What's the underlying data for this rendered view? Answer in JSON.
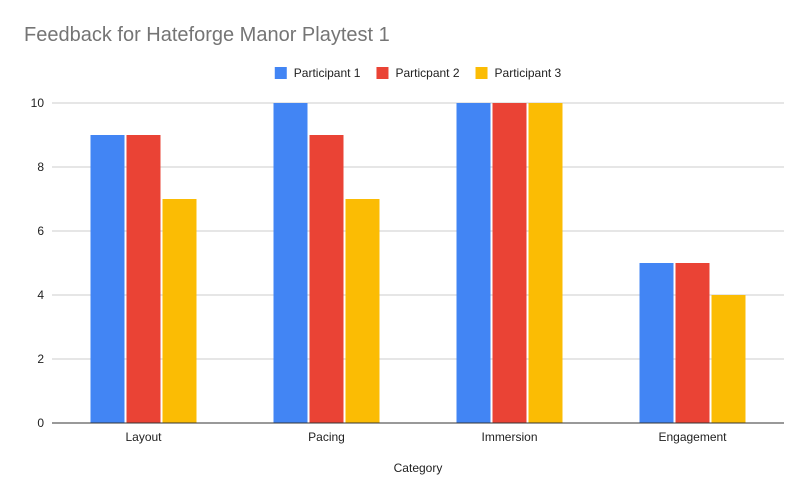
{
  "chart_data": {
    "type": "bar",
    "title": "Feedback for Hateforge Manor Playtest 1",
    "xlabel": "Category",
    "ylabel": "",
    "categories": [
      "Layout",
      "Pacing",
      "Immersion",
      "Engagement"
    ],
    "series": [
      {
        "name": "Participant 1",
        "color": "#4285f4",
        "values": [
          9,
          10,
          10,
          5
        ]
      },
      {
        "name": "Particpant 2",
        "color": "#ea4335",
        "values": [
          9,
          9,
          10,
          5
        ]
      },
      {
        "name": "Participant 3",
        "color": "#fbbc04",
        "values": [
          7,
          7,
          10,
          4
        ]
      }
    ],
    "ylim": [
      0,
      10
    ],
    "yticks": [
      0,
      2,
      4,
      6,
      8,
      10
    ],
    "grid": true,
    "legend_position": "top-center"
  }
}
